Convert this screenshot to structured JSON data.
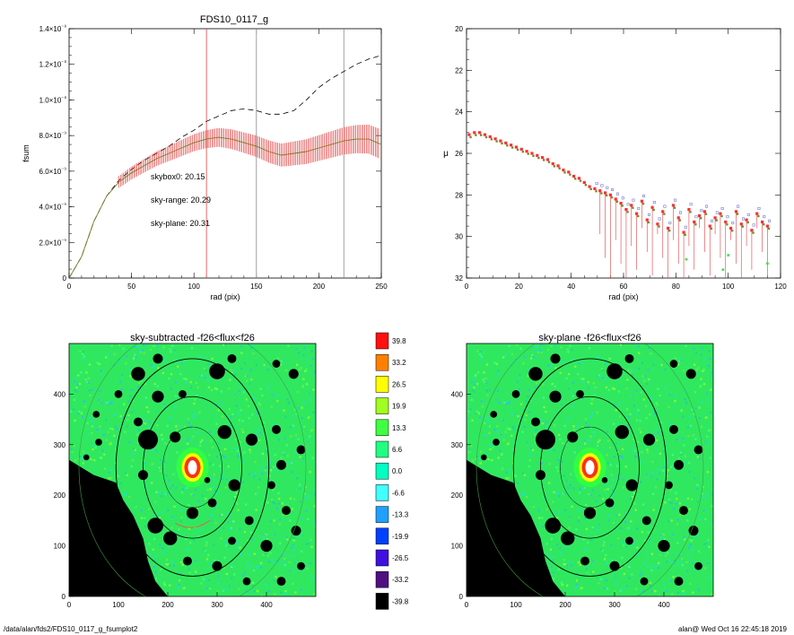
{
  "footer": {
    "path": "/data/alan/fds2/FDS10_0117_g_fsumplot2",
    "user_time": "alan@  Wed Oct 16 22:45:18 2019"
  },
  "colors": {
    "skybox": "#000000",
    "sky_range": "#ff2020",
    "sky_plane": "#20e020",
    "vline_red": "#e04040",
    "vline_grey": "#888888"
  },
  "chart_data": [
    {
      "type": "line",
      "title": "FDS10_0117_g",
      "xlabel": "rad (pix)",
      "ylabel": "fsum",
      "xlim": [
        0,
        250
      ],
      "ylim": [
        0,
        1.4e-08
      ],
      "x_ticks": [
        "0",
        "50",
        "100",
        "150",
        "200",
        "250"
      ],
      "y_ticks": [
        "0",
        "2.0×10⁻⁹",
        "4.0×10⁻⁹",
        "6.0×10⁻⁹",
        "8.0×10⁻⁹",
        "1.0×10⁻⁸",
        "1.2×10⁻⁸",
        "1.4×10⁻⁸"
      ],
      "annotations": [
        {
          "text": "skybox0: 20.15",
          "color": "#000000"
        },
        {
          "text": "sky-range: 20.29",
          "color": "#ff2020"
        },
        {
          "text": "sky-plane: 20.31",
          "color": "#20e020"
        }
      ],
      "vlines": [
        {
          "x": 110,
          "color": "#e04040"
        },
        {
          "x": 150,
          "color": "#888888"
        },
        {
          "x": 220,
          "color": "#888888"
        }
      ],
      "series": [
        {
          "style": "dashed",
          "x": [
            0,
            10,
            20,
            30,
            40,
            50,
            60,
            70,
            80,
            90,
            100,
            110,
            120,
            130,
            140,
            150,
            160,
            170,
            180,
            190,
            200,
            210,
            220,
            230,
            240,
            250
          ],
          "y": [
            0,
            1.2e-09,
            3.2e-09,
            4.6e-09,
            5.5e-09,
            6.1e-09,
            6.6e-09,
            7e-09,
            7.4e-09,
            7.9e-09,
            8.3e-09,
            8.8e-09,
            9.1e-09,
            9.4e-09,
            9.5e-09,
            9.4e-09,
            9.2e-09,
            9.2e-09,
            9.4e-09,
            1e-08,
            1.07e-08,
            1.12e-08,
            1.16e-08,
            1.2e-08,
            1.23e-08,
            1.25e-08
          ]
        },
        {
          "style": "solid",
          "error_bars": true,
          "x": [
            0,
            10,
            20,
            30,
            40,
            50,
            60,
            70,
            80,
            90,
            100,
            110,
            120,
            130,
            140,
            150,
            160,
            170,
            180,
            190,
            200,
            210,
            220,
            230,
            240,
            250
          ],
          "y": [
            0,
            1.2e-09,
            3.2e-09,
            4.6e-09,
            5.4e-09,
            5.9e-09,
            6.3e-09,
            6.7e-09,
            7e-09,
            7.3e-09,
            7.6e-09,
            7.8e-09,
            7.9e-09,
            7.8e-09,
            7.6e-09,
            7.4e-09,
            7.1e-09,
            6.9e-09,
            7e-09,
            7.1e-09,
            7.3e-09,
            7.5e-09,
            7.7e-09,
            7.8e-09,
            7.8e-09,
            7.5e-09
          ]
        }
      ]
    },
    {
      "type": "scatter",
      "title": "",
      "xlabel": "rad (pix)",
      "ylabel": "μ",
      "xlim": [
        0,
        120
      ],
      "ylim": [
        32,
        20
      ],
      "x_ticks": [
        "0",
        "20",
        "40",
        "60",
        "80",
        "100",
        "120"
      ],
      "y_ticks": [
        "20",
        "22",
        "24",
        "26",
        "28",
        "30",
        "32"
      ],
      "profile": {
        "x": [
          1,
          3,
          5,
          7,
          9,
          11,
          13,
          15,
          17,
          19,
          21,
          23,
          25,
          27,
          29,
          31,
          33,
          35,
          37,
          39,
          41,
          43,
          45,
          47,
          49,
          51,
          53,
          55,
          57,
          59,
          61,
          63,
          65,
          67,
          69,
          71,
          73,
          75,
          77,
          79,
          81,
          83,
          85,
          87,
          89,
          91,
          93,
          95,
          97,
          99,
          101,
          103,
          105,
          107,
          109,
          111,
          113,
          115
        ],
        "y": [
          25.1,
          25.0,
          25.0,
          25.1,
          25.2,
          25.3,
          25.4,
          25.5,
          25.6,
          25.7,
          25.8,
          25.9,
          26.0,
          26.1,
          26.2,
          26.3,
          26.5,
          26.6,
          26.8,
          26.9,
          27.1,
          27.2,
          27.4,
          27.6,
          27.7,
          27.8,
          27.9,
          28.0,
          28.2,
          28.4,
          28.7,
          28.5,
          28.9,
          28.3,
          29.2,
          28.6,
          29.4,
          28.8,
          29.6,
          28.5,
          29.1,
          29.8,
          28.7,
          29.3,
          29.0,
          28.8,
          29.5,
          29.1,
          28.9,
          29.3,
          29.6,
          28.8,
          29.4,
          29.2,
          29.7,
          28.9,
          29.3,
          29.5
        ]
      }
    },
    {
      "type": "heatmap",
      "title": "sky-subtracted -f26<flux<f26",
      "xlim": [
        0,
        500
      ],
      "ylim": [
        0,
        500
      ],
      "x_ticks": [
        "0",
        "100",
        "200",
        "300",
        "400"
      ],
      "y_ticks": [
        "0",
        "100",
        "200",
        "300",
        "400"
      ]
    },
    {
      "type": "heatmap",
      "title": "sky-plane -f26<flux<f26",
      "xlim": [
        0,
        500
      ],
      "ylim": [
        0,
        500
      ],
      "x_ticks": [
        "0",
        "100",
        "200",
        "300",
        "400"
      ],
      "y_ticks": [
        "0",
        "100",
        "200",
        "300",
        "400"
      ]
    }
  ],
  "colorbar": {
    "labels": [
      "39.8",
      "33.2",
      "26.5",
      "19.9",
      "13.3",
      "6.6",
      "0.0",
      "-6.6",
      "-13.3",
      "-19.9",
      "-26.5",
      "-33.2",
      "-39.8"
    ],
    "colors": [
      "#ff1010",
      "#ff8000",
      "#ffff00",
      "#a0ff20",
      "#40ff40",
      "#20ff80",
      "#00ffc0",
      "#40ffff",
      "#20a0ff",
      "#0040ff",
      "#4010e0",
      "#501080",
      "#000000"
    ]
  }
}
